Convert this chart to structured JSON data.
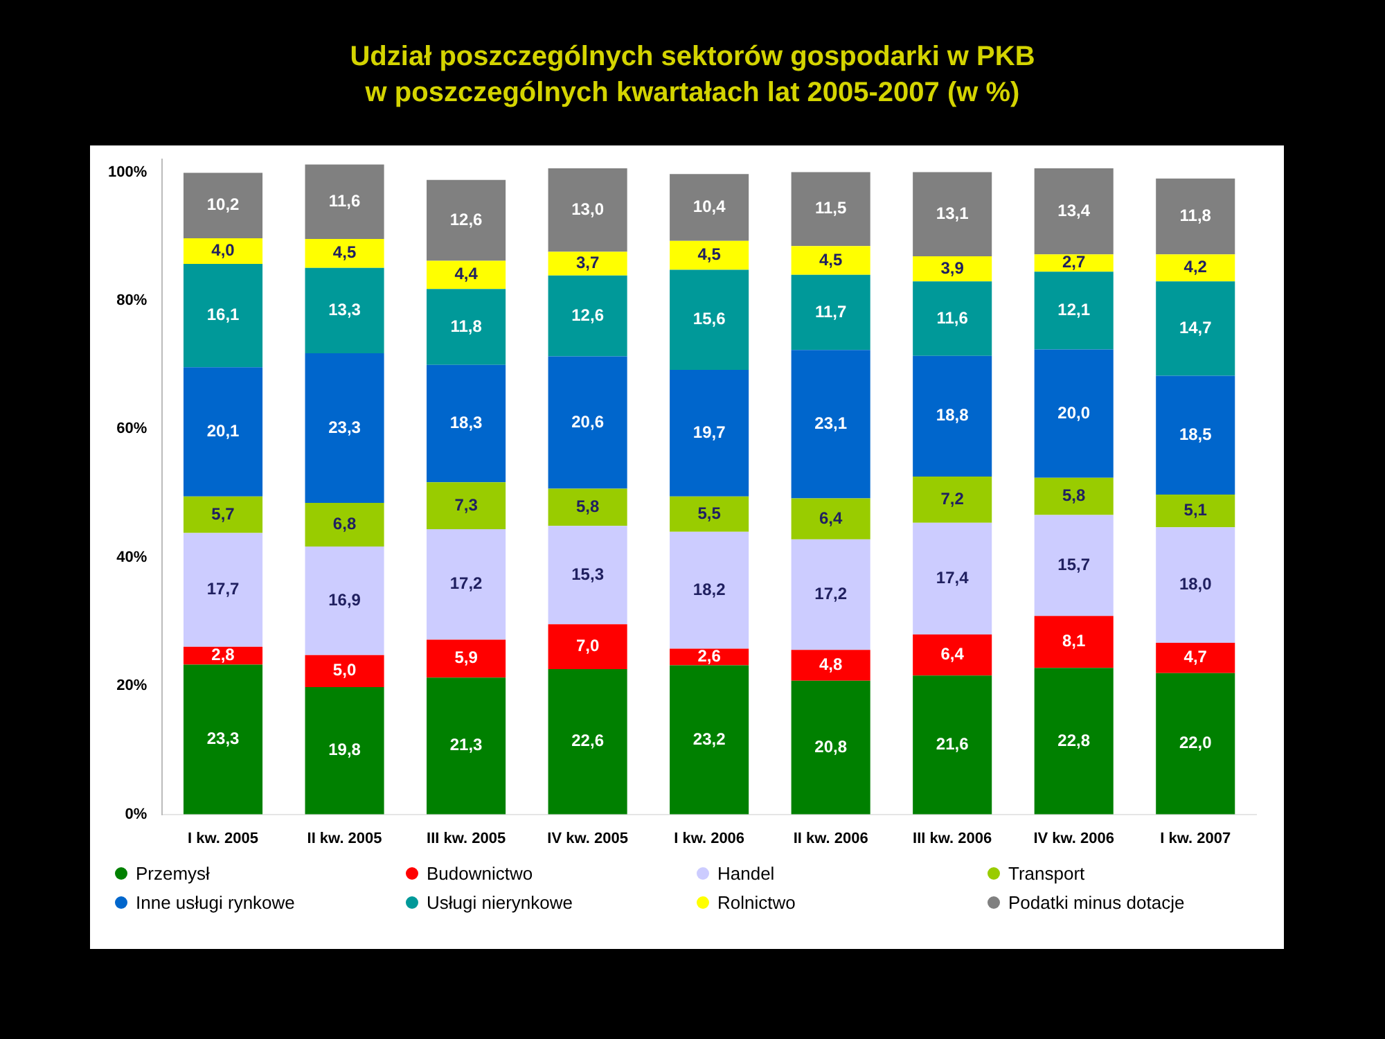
{
  "chart_data": {
    "type": "bar",
    "stacked": true,
    "title": "Udział poszczególnych sektorów gospodarki w PKB\nw poszczególnych kwartałach lat 2005-2007 (w %)",
    "categories": [
      "I kw. 2005",
      "II kw. 2005",
      "III kw. 2005",
      "IV kw. 2005",
      "I kw. 2006",
      "II kw. 2006",
      "III kw. 2006",
      "IV kw. 2006",
      "I kw. 2007"
    ],
    "ylim": [
      0,
      102
    ],
    "yticks": [
      {
        "value": 0,
        "label": "0%"
      },
      {
        "value": 20,
        "label": "20%"
      },
      {
        "value": 40,
        "label": "40%"
      },
      {
        "value": 60,
        "label": "60%"
      },
      {
        "value": 80,
        "label": "80%"
      },
      {
        "value": 100,
        "label": "100%"
      }
    ],
    "grid": false,
    "legend": "bottom",
    "series": [
      {
        "name": "Przemysł",
        "color": "#008000",
        "values": [
          23.3,
          19.8,
          21.3,
          22.6,
          23.2,
          20.8,
          21.6,
          22.8,
          22.0
        ],
        "value_labels": [
          "23,3",
          "19,8",
          "21,3",
          "22,6",
          "23,2",
          "20,8",
          "21,6",
          "22,8",
          "22,0"
        ]
      },
      {
        "name": "Budownictwo",
        "color": "#ff0000",
        "values": [
          2.8,
          5.0,
          5.9,
          7.0,
          2.6,
          4.8,
          6.4,
          8.1,
          4.7
        ],
        "value_labels": [
          "2,8",
          "5,0",
          "5,9",
          "7,0",
          "2,6",
          "4,8",
          "6,4",
          "8,1",
          "4,7"
        ]
      },
      {
        "name": "Handel",
        "color": "#ccccff",
        "values": [
          17.7,
          16.9,
          17.2,
          15.3,
          18.2,
          17.2,
          17.4,
          15.7,
          18.0
        ],
        "value_labels": [
          "17,7",
          "16,9",
          "17,2",
          "15,3",
          "18,2",
          "17,2",
          "17,4",
          "15,7",
          "18,0"
        ]
      },
      {
        "name": "Transport",
        "color": "#99cc00",
        "values": [
          5.7,
          6.8,
          7.3,
          5.8,
          5.5,
          6.4,
          7.2,
          5.8,
          5.1
        ],
        "value_labels": [
          "5,7",
          "6,8",
          "7,3",
          "5,8",
          "5,5",
          "6,4",
          "7,2",
          "5,8",
          "5,1"
        ]
      },
      {
        "name": "Inne usługi rynkowe",
        "color": "#0066cc",
        "values": [
          20.1,
          23.3,
          18.3,
          20.6,
          19.7,
          23.1,
          18.8,
          20.0,
          18.5
        ],
        "value_labels": [
          "20,1",
          "23,3",
          "18,3",
          "20,6",
          "19,7",
          "23,1",
          "18,8",
          "20,0",
          "18,5"
        ]
      },
      {
        "name": "Usługi nierynkowe",
        "color": "#009999",
        "values": [
          16.1,
          13.3,
          11.8,
          12.6,
          15.6,
          11.7,
          11.6,
          12.1,
          14.7
        ],
        "value_labels": [
          "16,1",
          "13,3",
          "11,8",
          "12,6",
          "15,6",
          "11,7",
          "11,6",
          "12,1",
          "14,7"
        ]
      },
      {
        "name": "Rolnictwo",
        "color": "#ffff00",
        "values": [
          4.0,
          4.5,
          4.4,
          3.7,
          4.5,
          4.5,
          3.9,
          2.7,
          4.2
        ],
        "value_labels": [
          "4,0",
          "4,5",
          "4,4",
          "3,7",
          "4,5",
          "4,5",
          "3,9",
          "2,7",
          "4,2"
        ]
      },
      {
        "name": "Podatki minus dotacje",
        "color": "#808080",
        "values": [
          10.2,
          11.6,
          12.6,
          13.0,
          10.4,
          11.5,
          13.1,
          13.4,
          11.8
        ],
        "value_labels": [
          "10,2",
          "11,6",
          "12,6",
          "13,0",
          "10,4",
          "11,5",
          "13,1",
          "13,4",
          "11,8"
        ]
      }
    ]
  }
}
